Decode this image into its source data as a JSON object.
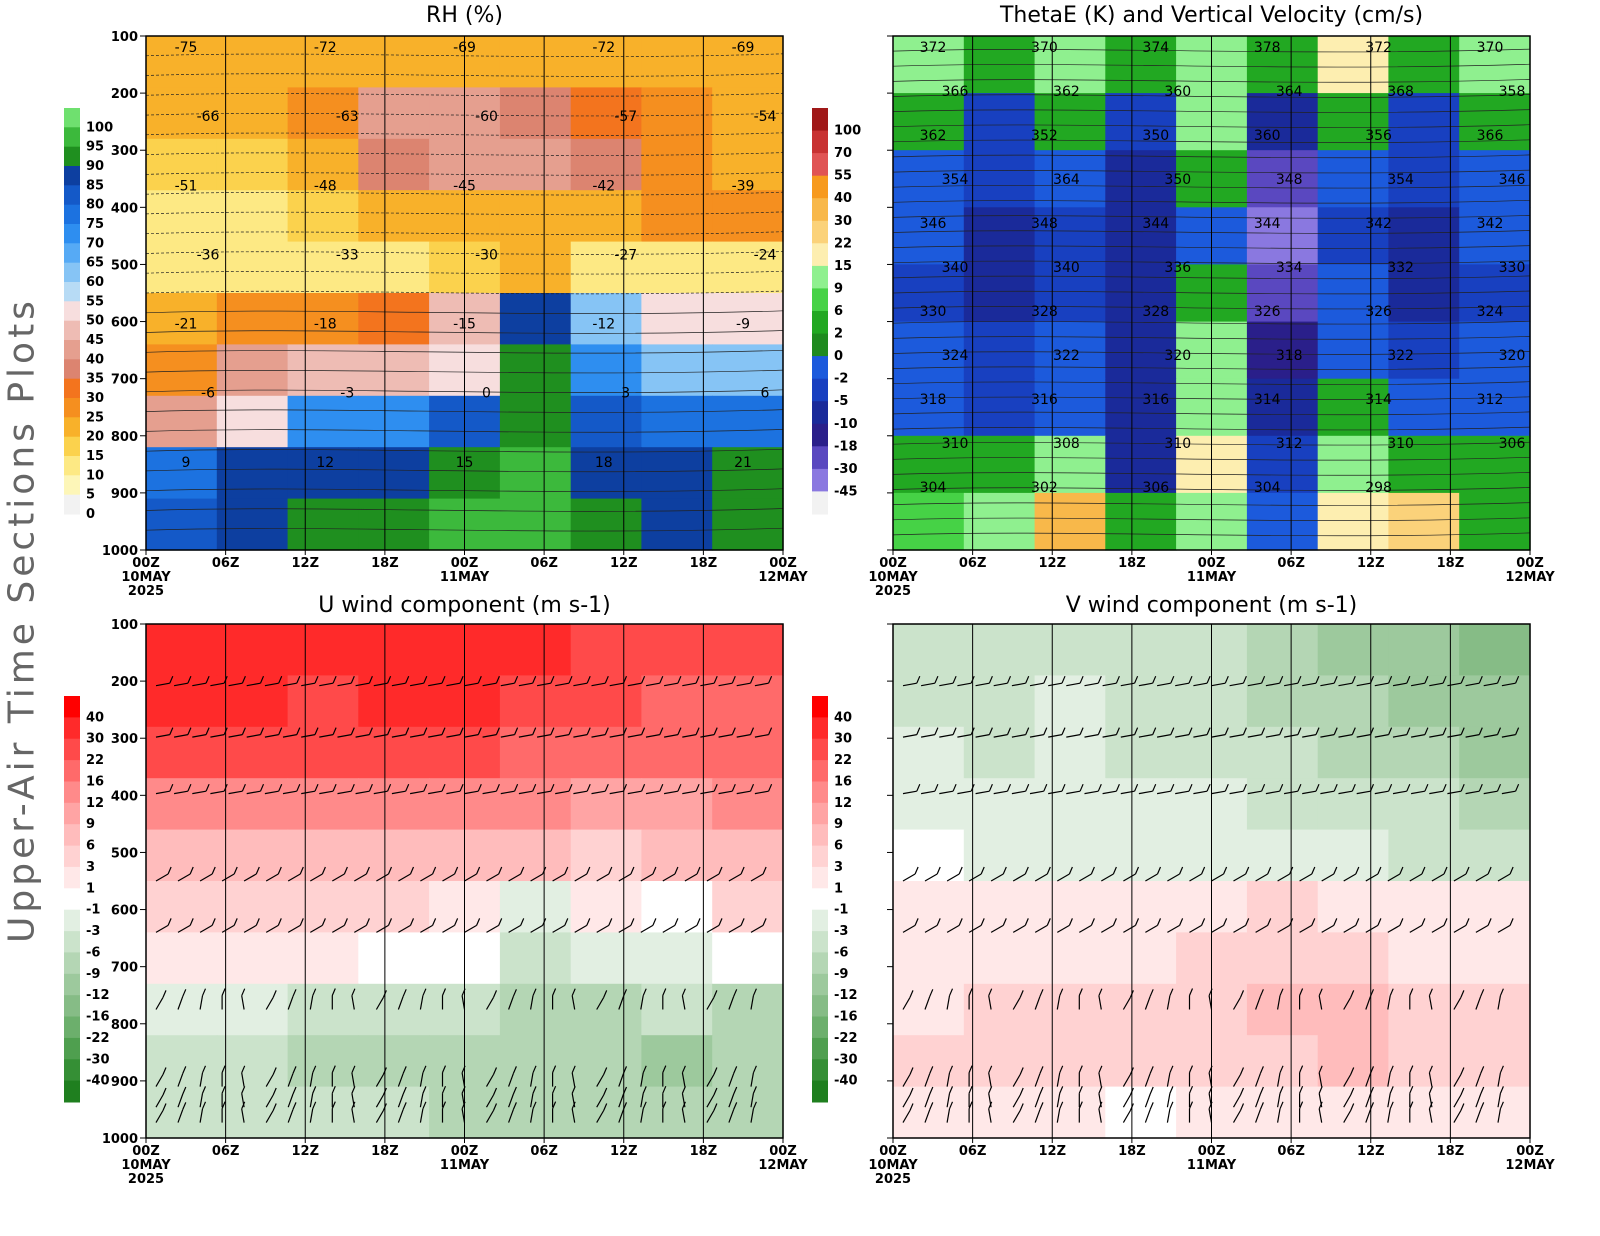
{
  "page_title": "Upper-Air Time Sections Plots",
  "chart_data": [
    {
      "id": "rh",
      "type": "heatmap",
      "title": "RH (%)",
      "overlay": "temperature contours (C)",
      "y_ticks": [
        100,
        200,
        300,
        400,
        500,
        600,
        700,
        800,
        900,
        1000
      ],
      "y_range": [
        1000,
        100
      ],
      "x_ticks": [
        "00Z",
        "06Z",
        "12Z",
        "18Z",
        "00Z",
        "06Z",
        "12Z",
        "18Z",
        "00Z"
      ],
      "date_labels": [
        "10MAY",
        "11MAY",
        "12MAY"
      ],
      "year_label": "2025",
      "colorbar": {
        "labels": [
          "100",
          "95",
          "90",
          "85",
          "80",
          "75",
          "70",
          "65",
          "60",
          "55",
          "50",
          "45",
          "40",
          "35",
          "30",
          "25",
          "20",
          "15",
          "10",
          "5",
          "0"
        ],
        "colors": [
          "#6fe06f",
          "#3cb93c",
          "#1f8f1f",
          "#0d3fa0",
          "#1459c8",
          "#1c72e0",
          "#2e8ef0",
          "#56aaf5",
          "#86c4f5",
          "#b7dbf5",
          "#f7dede",
          "#eebcb4",
          "#e59f8f",
          "#dc8470",
          "#f3741e",
          "#f58f1f",
          "#f8b12a",
          "#fbd24d",
          "#fde984",
          "#fdf6b8",
          "#f2f2f2"
        ]
      },
      "contour_labels": [
        "-75",
        "-72",
        "-69",
        "-72",
        "-69",
        "-66",
        "-63",
        "-60",
        "-57",
        "-54",
        "-51",
        "-48",
        "-45",
        "-42",
        "-39",
        "-36",
        "-33",
        "-30",
        "-27",
        "-24",
        "-21",
        "-18",
        "-15",
        "-12",
        "-9",
        "-6",
        "-3",
        "0",
        "3",
        "6",
        "9",
        "12",
        "15",
        "18",
        "21"
      ],
      "field": {
        "pressure": [
          100,
          200,
          300,
          400,
          500,
          600,
          700,
          800,
          900,
          1000
        ],
        "times": [
          "00Z10",
          "06Z10",
          "12Z10",
          "18Z10",
          "00Z11",
          "06Z11",
          "12Z11",
          "18Z11",
          "00Z12"
        ],
        "values": [
          [
            22,
            22,
            22,
            22,
            22,
            22,
            22,
            22,
            22
          ],
          [
            20,
            22,
            25,
            40,
            40,
            38,
            30,
            25,
            22
          ],
          [
            16,
            18,
            22,
            35,
            40,
            42,
            38,
            28,
            22
          ],
          [
            14,
            14,
            16,
            20,
            22,
            22,
            22,
            25,
            25
          ],
          [
            14,
            14,
            14,
            14,
            15,
            20,
            14,
            14,
            14
          ],
          [
            22,
            25,
            28,
            33,
            45,
            85,
            60,
            50,
            50
          ],
          [
            28,
            40,
            45,
            45,
            50,
            90,
            70,
            62,
            62
          ],
          [
            40,
            50,
            70,
            72,
            80,
            92,
            80,
            76,
            76
          ],
          [
            75,
            85,
            85,
            85,
            92,
            95,
            88,
            85,
            90
          ],
          [
            80,
            88,
            90,
            90,
            95,
            95,
            90,
            88,
            90
          ]
        ]
      }
    },
    {
      "id": "thetae",
      "type": "heatmap",
      "title": "ThetaE (K) and Vertical Velocity (cm/s)",
      "y_range": [
        1000,
        100
      ],
      "x_ticks": [
        "00Z",
        "06Z",
        "12Z",
        "18Z",
        "00Z",
        "06Z",
        "12Z",
        "18Z",
        "00Z"
      ],
      "date_labels": [
        "10MAY",
        "11MAY",
        "12MAY"
      ],
      "year_label": "2025",
      "colorbar": {
        "labels": [
          "100",
          "70",
          "55",
          "40",
          "30",
          "22",
          "15",
          "9",
          "6",
          "2",
          "0",
          "-2",
          "-5",
          "-10",
          "-18",
          "-30",
          "-45"
        ],
        "colors": [
          "#a01818",
          "#c83232",
          "#e05454",
          "#f79a1e",
          "#f8b84a",
          "#fbd27a",
          "#fdeeb0",
          "#8ff08f",
          "#46d246",
          "#22a822",
          "#1f8a1f",
          "#1c5adc",
          "#1840c0",
          "#1a2a9a",
          "#2a1f8a",
          "#5a48c0",
          "#8a78e0",
          "#f2f2f2"
        ]
      },
      "contour_labels": [
        "372",
        "370",
        "374",
        "378",
        "372",
        "370",
        "366",
        "362",
        "360",
        "364",
        "368",
        "358",
        "362",
        "352",
        "350",
        "360",
        "356",
        "366",
        "354",
        "364",
        "350",
        "348",
        "354",
        "346",
        "346",
        "348",
        "344",
        "344",
        "342",
        "342",
        "340",
        "340",
        "336",
        "334",
        "332",
        "330",
        "330",
        "328",
        "328",
        "326",
        "326",
        "324",
        "324",
        "322",
        "320",
        "318",
        "322",
        "320",
        "318",
        "316",
        "316",
        "314",
        "314",
        "312",
        "310",
        "308",
        "310",
        "312",
        "310",
        "306",
        "304",
        "302",
        "306",
        "304",
        "298"
      ],
      "field": {
        "values": [
          [
            9,
            2,
            9,
            2,
            9,
            2,
            15,
            2,
            9
          ],
          [
            2,
            -5,
            2,
            -5,
            9,
            -10,
            2,
            -5,
            2
          ],
          [
            -2,
            -5,
            -2,
            -10,
            2,
            -30,
            -2,
            -5,
            -2
          ],
          [
            -2,
            -10,
            -5,
            -10,
            -2,
            -45,
            -5,
            -10,
            -2
          ],
          [
            -5,
            -10,
            -5,
            -10,
            2,
            -30,
            -2,
            -10,
            -5
          ],
          [
            -2,
            -5,
            -2,
            -10,
            9,
            -18,
            -2,
            -5,
            -2
          ],
          [
            -2,
            -5,
            -2,
            -10,
            9,
            -10,
            2,
            -2,
            -2
          ],
          [
            2,
            2,
            9,
            -10,
            15,
            -5,
            9,
            2,
            2
          ],
          [
            6,
            9,
            30,
            2,
            9,
            -2,
            15,
            22,
            2
          ]
        ]
      }
    },
    {
      "id": "u-wind",
      "type": "heatmap",
      "title": "U wind component (m s-1)",
      "overlay": "wind barbs",
      "y_ticks": [
        100,
        200,
        300,
        400,
        500,
        600,
        700,
        800,
        900,
        1000
      ],
      "y_range": [
        1000,
        100
      ],
      "x_ticks": [
        "00Z",
        "06Z",
        "12Z",
        "18Z",
        "00Z",
        "06Z",
        "12Z",
        "18Z",
        "00Z"
      ],
      "date_labels": [
        "10MAY",
        "11MAY",
        "12MAY"
      ],
      "year_label": "2025",
      "colorbar": {
        "labels": [
          "40",
          "30",
          "22",
          "16",
          "12",
          "9",
          "6",
          "3",
          "1",
          "-1",
          "-3",
          "-6",
          "-9",
          "-12",
          "-16",
          "-22",
          "-30",
          "-40"
        ],
        "colors": [
          "#ff0000",
          "#ff2a2a",
          "#ff4a4a",
          "#ff6a6a",
          "#ff8a8a",
          "#ffa4a4",
          "#ffbcbc",
          "#ffd2d2",
          "#ffe8e8",
          "#ffffff",
          "#e2efe2",
          "#cbe3cb",
          "#b4d6b4",
          "#9dc99d",
          "#86bc86",
          "#6caf6c",
          "#4f9f4f",
          "#358f35",
          "#1f7f1f"
        ]
      },
      "field": {
        "values": [
          [
            30,
            30,
            30,
            30,
            30,
            30,
            25,
            22,
            22
          ],
          [
            32,
            30,
            28,
            32,
            30,
            26,
            22,
            20,
            20
          ],
          [
            25,
            25,
            22,
            24,
            22,
            20,
            18,
            16,
            16
          ],
          [
            14,
            14,
            12,
            14,
            13,
            12,
            10,
            10,
            12
          ],
          [
            8,
            8,
            8,
            8,
            7,
            6,
            5,
            6,
            8
          ],
          [
            4,
            4,
            4,
            3,
            2,
            -2,
            2,
            0,
            3
          ],
          [
            1,
            1,
            1,
            0,
            -1,
            -4,
            -3,
            -2,
            -1
          ],
          [
            -3,
            -3,
            -4,
            -4,
            -5,
            -8,
            -7,
            -6,
            -7
          ],
          [
            -6,
            -6,
            -7,
            -8,
            -8,
            -9,
            -9,
            -10,
            -9
          ],
          [
            -4,
            -5,
            -6,
            -6,
            -7,
            -7,
            -8,
            -8,
            -8
          ]
        ]
      }
    },
    {
      "id": "v-wind",
      "type": "heatmap",
      "title": "V wind component (m s-1)",
      "overlay": "wind barbs",
      "y_range": [
        1000,
        100
      ],
      "x_ticks": [
        "00Z",
        "06Z",
        "12Z",
        "18Z",
        "00Z",
        "06Z",
        "12Z",
        "18Z",
        "00Z"
      ],
      "date_labels": [
        "10MAY",
        "11MAY",
        "12MAY"
      ],
      "year_label": "2025",
      "colorbar": {
        "labels": [
          "40",
          "30",
          "22",
          "16",
          "12",
          "9",
          "6",
          "3",
          "1",
          "-1",
          "-3",
          "-6",
          "-9",
          "-12",
          "-16",
          "-22",
          "-30",
          "-40"
        ],
        "colors": [
          "#ff0000",
          "#ff2a2a",
          "#ff4a4a",
          "#ff6a6a",
          "#ff8a8a",
          "#ffa4a4",
          "#ffbcbc",
          "#ffd2d2",
          "#ffe8e8",
          "#ffffff",
          "#e2efe2",
          "#cbe3cb",
          "#b4d6b4",
          "#9dc99d",
          "#86bc86",
          "#6caf6c",
          "#4f9f4f",
          "#358f35",
          "#1f7f1f"
        ]
      },
      "field": {
        "values": [
          [
            -4,
            -4,
            -4,
            -5,
            -6,
            -8,
            -10,
            -12,
            -14
          ],
          [
            -4,
            -4,
            -3,
            -4,
            -5,
            -7,
            -9,
            -11,
            -12
          ],
          [
            -3,
            -4,
            -3,
            -4,
            -4,
            -6,
            -7,
            -9,
            -10
          ],
          [
            -2,
            -3,
            -3,
            -3,
            -3,
            -4,
            -5,
            -6,
            -7
          ],
          [
            -1,
            -2,
            -2,
            -2,
            -2,
            -3,
            -3,
            -4,
            -5
          ],
          [
            2,
            1,
            1,
            1,
            2,
            3,
            2,
            2,
            1
          ],
          [
            1,
            2,
            2,
            2,
            3,
            5,
            3,
            2,
            1
          ],
          [
            2,
            3,
            4,
            4,
            5,
            7,
            6,
            5,
            4
          ],
          [
            3,
            3,
            4,
            3,
            4,
            5,
            6,
            4,
            4
          ],
          [
            1,
            1,
            1,
            0,
            1,
            2,
            2,
            1,
            1
          ]
        ]
      }
    }
  ]
}
